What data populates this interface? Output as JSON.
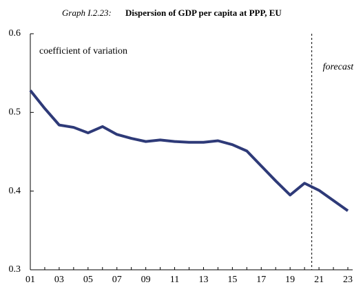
{
  "chart_data": {
    "type": "line",
    "title_prefix": "Graph I.2.23:",
    "title": "Dispersion of GDP per capita at PPP, EU",
    "y_label": "coefficient of variation",
    "annotation": "forecast",
    "forecast_start": "21",
    "categories": [
      "01",
      null,
      "03",
      null,
      "05",
      null,
      "07",
      null,
      "09",
      null,
      "11",
      null,
      "13",
      null,
      "15",
      null,
      "17",
      null,
      "19",
      null,
      "21",
      null,
      "23"
    ],
    "series": [
      {
        "name": "coefficient of variation",
        "color": "#2e3a78",
        "values": [
          0.528,
          0.505,
          0.484,
          0.481,
          0.474,
          0.482,
          0.472,
          0.467,
          0.463,
          0.465,
          0.463,
          0.462,
          0.462,
          0.464,
          0.459,
          0.451,
          0.432,
          0.413,
          0.395,
          0.41,
          0.401,
          0.388,
          0.375
        ]
      }
    ],
    "ylim": [
      0.3,
      0.6
    ],
    "yticks": [
      0.3,
      0.4,
      0.5,
      0.6
    ]
  }
}
